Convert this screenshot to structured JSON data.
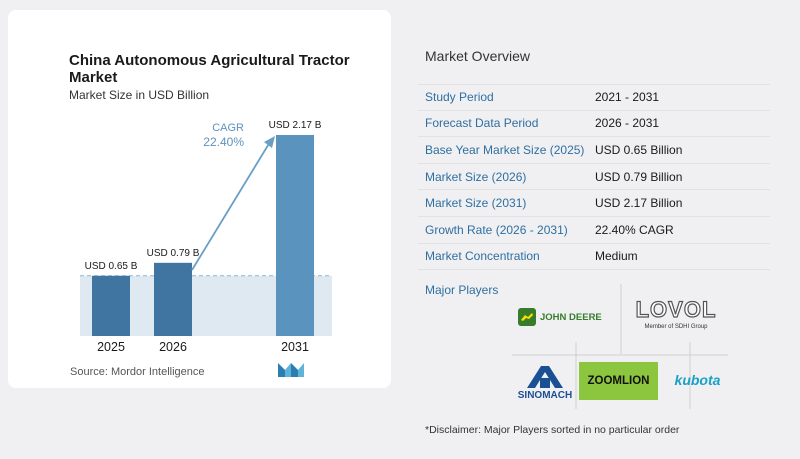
{
  "chart": {
    "title": "China Autonomous Agricultural Tractor Market",
    "subtitle": "Market Size in USD Billion",
    "cagr_label": "CAGR",
    "cagr_value": "22.40%",
    "source": "Source:  Mordor Intelligence"
  },
  "chart_data": {
    "type": "bar",
    "title": "China Autonomous Agricultural Tractor Market",
    "subtitle": "Market Size in USD Billion",
    "categories": [
      "2025",
      "2026",
      "2031"
    ],
    "values": [
      0.65,
      0.79,
      2.17
    ],
    "data_labels": [
      "USD 0.65 B",
      "USD 0.79 B",
      "USD 2.17 B"
    ],
    "ylabel": "",
    "xlabel": "",
    "annotation": "CAGR 22.40%",
    "grid": false,
    "colors": {
      "bar_light": "#5a93bd",
      "bar_dark": "#3f75a0",
      "band": "#dfe9f1",
      "arrow": "#6a9fc5"
    }
  },
  "overview": {
    "title": "Market Overview",
    "rows": [
      {
        "label": "Study Period",
        "value": "2021 - 2031"
      },
      {
        "label": "Forecast Data Period",
        "value": "2026 - 2031"
      },
      {
        "label": "Base Year Market Size (2025)",
        "value": "USD 0.65 Billion"
      },
      {
        "label": "Market Size (2026)",
        "value": "USD 0.79 Billion"
      },
      {
        "label": "Market Size (2031)",
        "value": "USD 2.17 Billion"
      },
      {
        "label": "Growth Rate (2026 - 2031)",
        "value": "22.40% CAGR"
      },
      {
        "label": "Market Concentration",
        "value": "Medium"
      }
    ]
  },
  "players": {
    "title": "Major Players",
    "logos": {
      "john_deere": "JOHN DEERE",
      "lovol": "LOVOL",
      "lovol_sub": "Member of SDHI Group",
      "sinomach": "SINOMACH",
      "zoomlion": "ZOOMLION",
      "kubota": "kubota"
    }
  },
  "disclaimer": "*Disclaimer: Major Players sorted in no particular order"
}
